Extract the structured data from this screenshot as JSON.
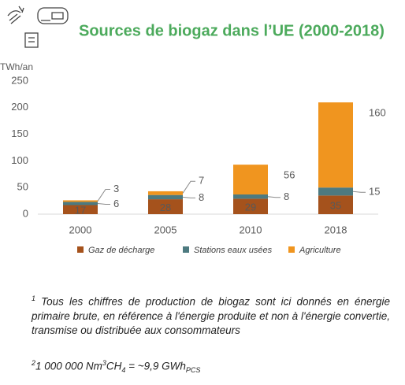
{
  "chart_data": {
    "type": "stacked-bar",
    "title": "Sources de biogaz dans l’UE (2000-2018)",
    "y_label": "TWh/an",
    "categories": [
      "2000",
      "2005",
      "2010",
      "2018"
    ],
    "series": [
      {
        "name": "Gaz de décharge",
        "color": "#a5521c",
        "values": [
          17,
          28,
          29,
          35
        ]
      },
      {
        "name": "Stations eaux usées",
        "color": "#4d7a80",
        "values": [
          6,
          8,
          8,
          15
        ]
      },
      {
        "name": "Agriculture",
        "color": "#f0951f",
        "values": [
          3,
          7,
          56,
          160
        ]
      }
    ],
    "ylim": [
      0,
      250
    ],
    "yticks": [
      0,
      50,
      100,
      150,
      200,
      250
    ],
    "grid": false,
    "legend": "bottom"
  },
  "footnotes": [
    {
      "marker": "1",
      "text": "Tous les chiffres de production de biogaz sont ici donnés en énergie primaire brute, en référence à l'énergie produite et non à l'énergie convertie, transmise ou distribuée aux consommateurs"
    },
    {
      "marker": "2",
      "parts": [
        "1 000 000 Nm",
        "3",
        "CH",
        "4",
        " = ~9,9 GWh",
        "PCS"
      ]
    }
  ]
}
